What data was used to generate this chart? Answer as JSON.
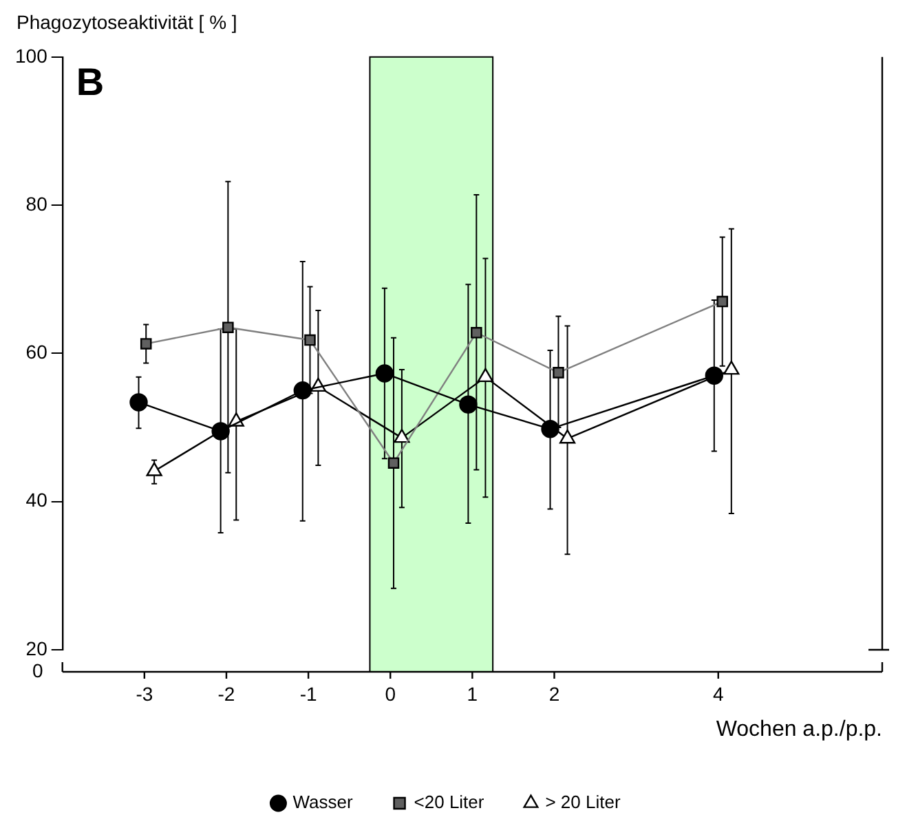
{
  "chart_data": {
    "type": "line",
    "ylabel": "Phagozytoseaktivität [ % ]",
    "xlabel": "Wochen a.p./p.p.",
    "xlim": [
      -4,
      6
    ],
    "xticks": [
      -3,
      -2,
      -1,
      0,
      1,
      2,
      4
    ],
    "ylim": [
      20,
      100
    ],
    "yticks": [
      20,
      40,
      60,
      80,
      100
    ],
    "annotations": [
      "B",
      "0"
    ],
    "grid": false,
    "legend": "bottom",
    "bands": [
      {
        "axis": "x",
        "from": -0.25,
        "to": 1.25,
        "color": "#ccffcc"
      }
    ],
    "series": [
      {
        "name": "Wasser",
        "color": "#000000",
        "marker": "circle",
        "x": [
          -3.07,
          -2.07,
          -1.07,
          -0.07,
          0.95,
          1.95,
          3.95
        ],
        "values": [
          53.4,
          49.5,
          55.0,
          57.3,
          53.1,
          49.8,
          57.0
        ],
        "errors": [
          [
            49.9,
            56.8
          ],
          [
            35.8,
            63.3
          ],
          [
            37.4,
            72.4
          ],
          [
            45.8,
            68.8
          ],
          [
            37.1,
            69.3
          ],
          [
            39.0,
            60.4
          ],
          [
            46.8,
            67.2
          ]
        ]
      },
      {
        "name": "<20 Liter",
        "color": "#808080",
        "marker": "square",
        "x": [
          -2.98,
          -1.98,
          -0.98,
          0.04,
          1.05,
          2.05,
          4.05
        ],
        "values": [
          61.3,
          63.5,
          61.8,
          45.2,
          62.8,
          57.4,
          67.0
        ],
        "errors": [
          [
            58.7,
            63.9
          ],
          [
            43.9,
            83.2
          ],
          [
            54.6,
            69.0
          ],
          [
            28.3,
            62.1
          ],
          [
            44.3,
            81.4
          ],
          [
            50.0,
            65.0
          ],
          [
            58.3,
            75.7
          ]
        ]
      },
      {
        "name": "> 20 Liter",
        "color": "#000000",
        "marker": "triangle",
        "x": [
          -2.88,
          -1.88,
          -0.88,
          0.14,
          1.16,
          2.16,
          4.16
        ],
        "values": [
          44.1,
          50.8,
          55.5,
          48.6,
          56.8,
          48.5,
          57.8
        ],
        "errors": [
          [
            42.4,
            45.6
          ],
          [
            37.5,
            63.3
          ],
          [
            44.9,
            65.8
          ],
          [
            39.2,
            57.8
          ],
          [
            40.6,
            72.8
          ],
          [
            32.9,
            63.7
          ],
          [
            38.4,
            76.8
          ]
        ]
      }
    ]
  }
}
